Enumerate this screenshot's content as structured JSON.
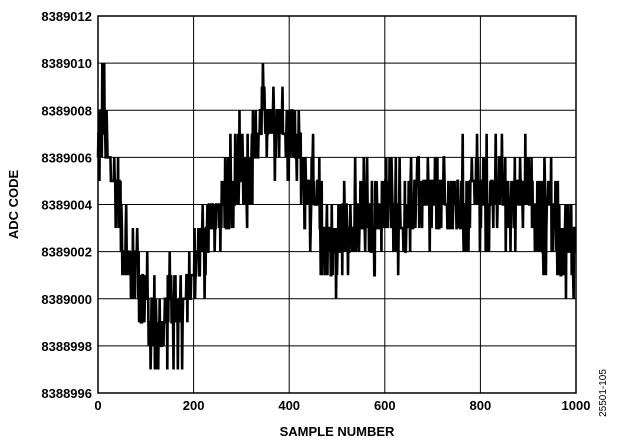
{
  "chart_data": {
    "type": "line",
    "title": "",
    "xlabel": "SAMPLE NUMBER",
    "ylabel": "ADC CODE",
    "xlim": [
      0,
      1000
    ],
    "ylim": [
      8388996,
      8389012
    ],
    "xticks": [
      0,
      200,
      400,
      600,
      800,
      1000
    ],
    "yticks": [
      8388996,
      8388998,
      8389000,
      8389002,
      8389004,
      8389006,
      8389008,
      8389010,
      8389012
    ],
    "xtick_labels": [
      "0",
      "200",
      "400",
      "600",
      "800",
      "1000"
    ],
    "ytick_labels": [
      "8388996",
      "8388998",
      "8389000",
      "8389002",
      "8389004",
      "8389006",
      "8389008",
      "8389010",
      "8389012"
    ],
    "grid": true,
    "line_color": "#000000",
    "figure_id": "25501-105",
    "series": [
      {
        "x": [
          0,
          10,
          20,
          30,
          40,
          50,
          60,
          70,
          80,
          90,
          100,
          110,
          120,
          130,
          140,
          150,
          160,
          170,
          180,
          190,
          200,
          210,
          220,
          230,
          240,
          250,
          260,
          270,
          280,
          290,
          300,
          310,
          320,
          330,
          340,
          350,
          360,
          370,
          380,
          390,
          400,
          410,
          420,
          430,
          440,
          450,
          460,
          470,
          480,
          490,
          500,
          510,
          520,
          530,
          540,
          550,
          560,
          570,
          580,
          590,
          600,
          610,
          620,
          630,
          640,
          650,
          660,
          670,
          680,
          690,
          700,
          710,
          720,
          730,
          740,
          750,
          760,
          770,
          780,
          790,
          800,
          810,
          820,
          830,
          840,
          850,
          860,
          870,
          880,
          890,
          900,
          910,
          920,
          930,
          940,
          950,
          960,
          970,
          980,
          990,
          1000
        ],
        "values": [
          8389006,
          8389008,
          8389006,
          8389005,
          8389005,
          8389003,
          8389002,
          8389001,
          8389002,
          8389000,
          8389000,
          8388999,
          8388999,
          8388998,
          8388999,
          8389000,
          8388999,
          8388999,
          8389000,
          8389001,
          8389001,
          8389002,
          8389002,
          8389003,
          8389003,
          8389004,
          8389004,
          8389005,
          8389004,
          8389005,
          8389005,
          8389004,
          8389006,
          8389006,
          8389007,
          8389008,
          8389008,
          8389008,
          8389008,
          8389007,
          8389007,
          8389007,
          8389006,
          8389005,
          8389005,
          8389004,
          8389004,
          8389003,
          8389003,
          8389002,
          8389002,
          8389003,
          8389004,
          8389003,
          8389003,
          8389003,
          8389004,
          8389003,
          8389003,
          8389004,
          8389004,
          8389004,
          8389004,
          8389004,
          8389003,
          8389003,
          8389004,
          8389005,
          8389004,
          8389004,
          8389004,
          8389004,
          8389004,
          8389004,
          8389004,
          8389004,
          8389004,
          8389004,
          8389005,
          8389005,
          8389004,
          8389004,
          8389004,
          8389005,
          8389005,
          8389004,
          8389004,
          8389004,
          8389005,
          8389005,
          8389004,
          8389004,
          8389003,
          8389003,
          8389004,
          8389004,
          8389003,
          8389003,
          8389002,
          8389002,
          8389002
        ],
        "noise_amplitude": 3,
        "samples": 1000
      }
    ]
  }
}
